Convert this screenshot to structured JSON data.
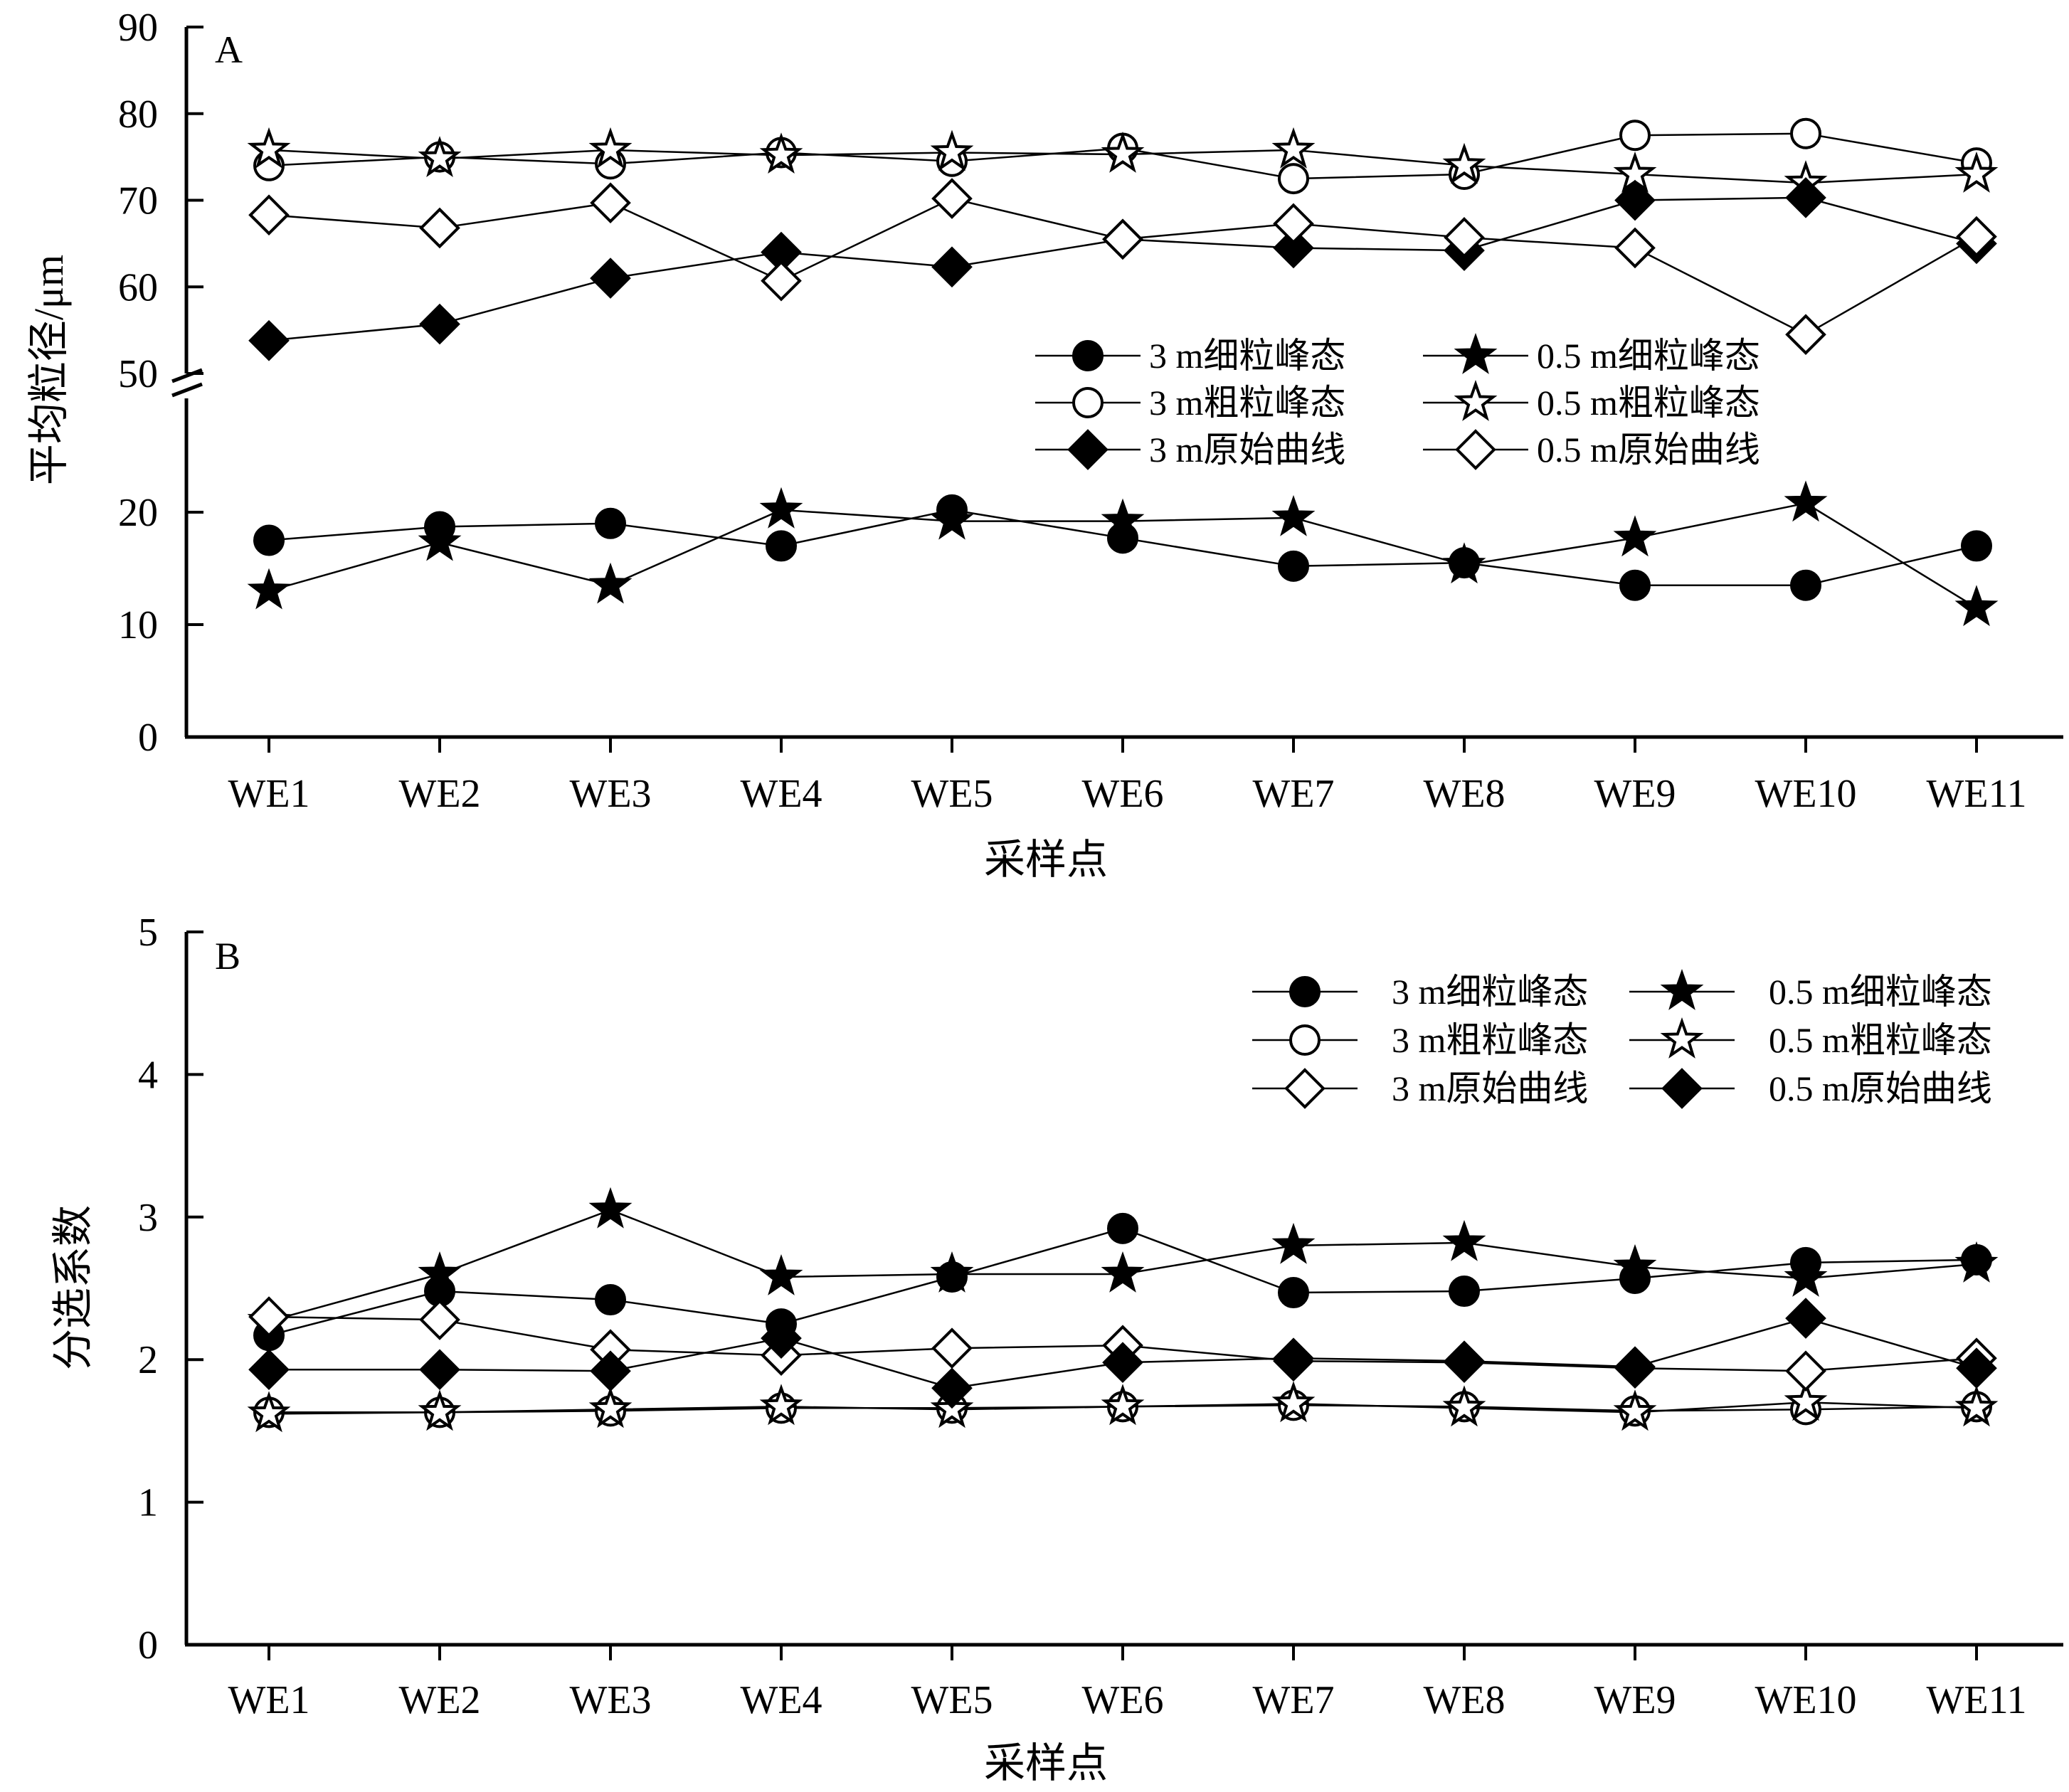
{
  "chart_data": [
    {
      "panel": "A",
      "type": "line",
      "title": "",
      "xlabel": "采样点",
      "ylabel": "平均粒径/μm",
      "categories": [
        "WE1",
        "WE2",
        "WE3",
        "WE4",
        "WE5",
        "WE6",
        "WE7",
        "WE8",
        "WE9",
        "WE10",
        "WE11"
      ],
      "yticks_lower": [
        "0",
        "10",
        "20"
      ],
      "yticks_upper": [
        "50",
        "60",
        "70",
        "80",
        "90"
      ],
      "ylim": [
        0,
        90
      ],
      "axis_break": [
        25,
        50
      ],
      "grid": false,
      "legend_position": "center-right",
      "series": [
        {
          "name": "3 m细粒峰态",
          "marker": "circle",
          "fill": "black",
          "values": [
            17.5,
            18.7,
            19.0,
            17.0,
            20.2,
            17.7,
            15.2,
            15.5,
            13.5,
            13.5,
            17.0
          ]
        },
        {
          "name": "0.5 m细粒峰态",
          "marker": "star",
          "fill": "black",
          "values": [
            13.0,
            17.3,
            13.5,
            20.2,
            19.2,
            19.2,
            19.5,
            15.3,
            17.7,
            20.8,
            11.5
          ]
        },
        {
          "name": "3 m粗粒峰态",
          "marker": "circle",
          "fill": "white",
          "values": [
            74.0,
            75.0,
            74.2,
            75.5,
            74.5,
            76.0,
            72.5,
            73.0,
            77.5,
            77.7,
            74.3
          ]
        },
        {
          "name": "0.5 m粗粒峰态",
          "marker": "star",
          "fill": "white",
          "values": [
            75.8,
            74.8,
            75.8,
            75.2,
            75.5,
            75.3,
            75.8,
            74.0,
            73.0,
            72.0,
            73.0
          ]
        },
        {
          "name": "3 m原始曲线",
          "marker": "diamond",
          "fill": "black",
          "values": [
            53.8,
            55.7,
            61.0,
            64.0,
            62.3,
            65.5,
            64.5,
            64.2,
            70.0,
            70.3,
            65.0
          ]
        },
        {
          "name": "0.5 m原始曲线",
          "marker": "diamond",
          "fill": "white",
          "values": [
            68.3,
            66.8,
            69.7,
            60.7,
            70.2,
            65.5,
            67.3,
            65.7,
            64.5,
            54.5,
            65.8
          ]
        }
      ]
    },
    {
      "panel": "B",
      "type": "line",
      "title": "",
      "xlabel": "采样点",
      "ylabel": "分选系数",
      "categories": [
        "WE1",
        "WE2",
        "WE3",
        "WE4",
        "WE5",
        "WE6",
        "WE7",
        "WE8",
        "WE9",
        "WE10",
        "WE11"
      ],
      "yticks": [
        "0",
        "1",
        "2",
        "3",
        "4",
        "5"
      ],
      "ylim": [
        0,
        5
      ],
      "grid": false,
      "legend_position": "top-right",
      "series": [
        {
          "name": "3 m细粒峰态",
          "marker": "circle",
          "fill": "black",
          "values": [
            2.17,
            2.48,
            2.42,
            2.25,
            2.58,
            2.92,
            2.47,
            2.48,
            2.57,
            2.68,
            2.7
          ]
        },
        {
          "name": "0.5 m细粒峰态",
          "marker": "star",
          "fill": "black",
          "values": [
            2.27,
            2.6,
            3.05,
            2.58,
            2.6,
            2.6,
            2.8,
            2.82,
            2.65,
            2.57,
            2.67
          ]
        },
        {
          "name": "3 m粗粒峰态",
          "marker": "circle",
          "fill": "white",
          "values": [
            1.63,
            1.63,
            1.64,
            1.66,
            1.66,
            1.67,
            1.68,
            1.67,
            1.64,
            1.65,
            1.67
          ]
        },
        {
          "name": "0.5 m粗粒峰态",
          "marker": "star",
          "fill": "white",
          "values": [
            1.62,
            1.63,
            1.65,
            1.67,
            1.65,
            1.67,
            1.69,
            1.66,
            1.63,
            1.7,
            1.66
          ]
        },
        {
          "name": "3 m原始曲线",
          "marker": "diamond",
          "fill": "white",
          "values": [
            2.3,
            2.28,
            2.07,
            2.03,
            2.08,
            2.1,
            1.99,
            1.98,
            1.94,
            1.92,
            2.01
          ]
        },
        {
          "name": "0.5 m原始曲线",
          "marker": "diamond",
          "fill": "black",
          "values": [
            1.93,
            1.93,
            1.92,
            2.15,
            1.8,
            1.98,
            2.01,
            1.99,
            1.95,
            2.29,
            1.94
          ]
        }
      ]
    }
  ]
}
